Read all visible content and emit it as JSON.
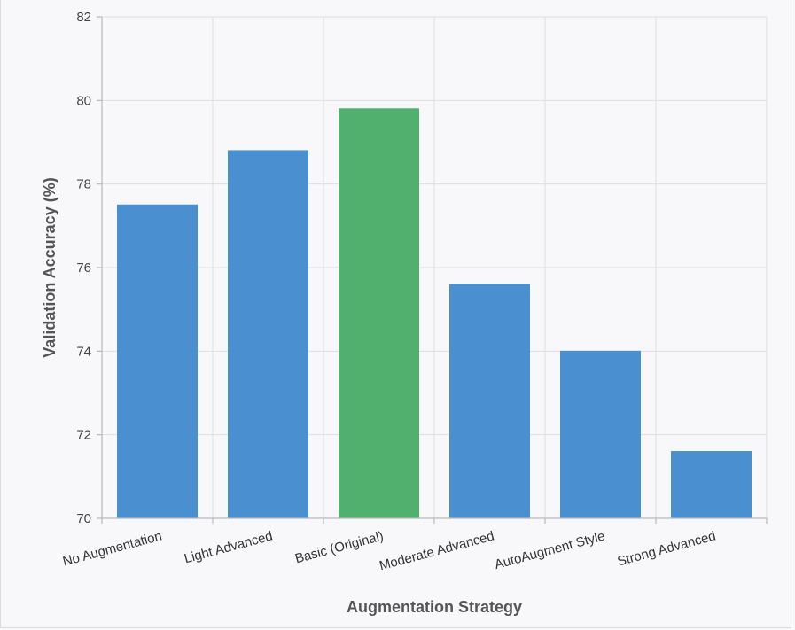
{
  "chart_data": {
    "type": "bar",
    "title": "",
    "xlabel": "Augmentation Strategy",
    "ylabel": "Validation Accuracy (%)",
    "ylim": [
      70,
      82
    ],
    "yticks": [
      70,
      72,
      74,
      76,
      78,
      80,
      82
    ],
    "grid": true,
    "categories": [
      "No Augmentation",
      "Light Advanced",
      "Basic (Original)",
      "Moderate Advanced",
      "AutoAugment Style",
      "Strong Advanced"
    ],
    "values": [
      77.5,
      78.8,
      79.8,
      75.6,
      74.0,
      71.6
    ],
    "colors": [
      "#4a90d0",
      "#4a90d0",
      "#52b06e",
      "#4a90d0",
      "#4a90d0",
      "#4a90d0"
    ],
    "highlight_category": "Basic (Original)"
  }
}
